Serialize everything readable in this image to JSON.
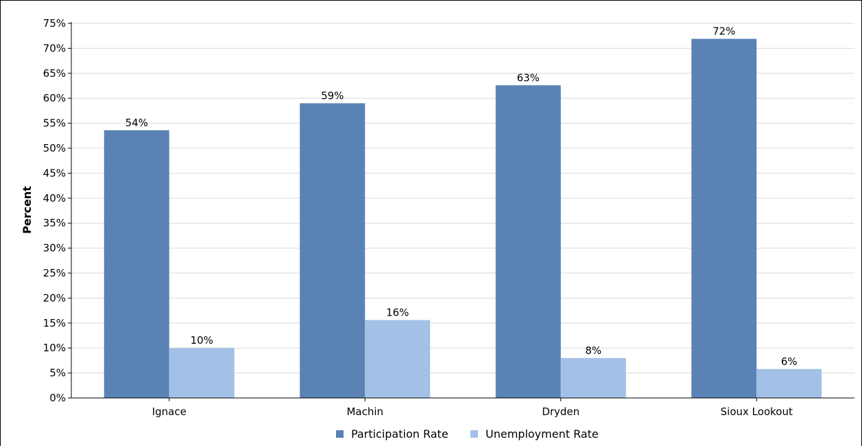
{
  "colors": {
    "participation": "#5a82b4",
    "unemployment": "#a3c1e6",
    "grid": "#d9d9d9",
    "axis": "#000000"
  },
  "chart_data": {
    "type": "bar",
    "title": "",
    "xlabel": "",
    "ylabel": "Percent",
    "ylim": [
      0,
      75
    ],
    "ytick_step": 5,
    "ytick_suffix": "%",
    "grid": true,
    "legend_position": "bottom",
    "categories": [
      "Ignace",
      "Machin",
      "Dryden",
      "Sioux Lookout"
    ],
    "series": [
      {
        "name": "Participation Rate",
        "values": [
          53.6,
          59.0,
          62.6,
          71.9
        ],
        "labels": [
          "54%",
          "59%",
          "63%",
          "72%"
        ],
        "color_key": "participation"
      },
      {
        "name": "Unemployment Rate",
        "values": [
          10.0,
          15.6,
          8.0,
          5.8
        ],
        "labels": [
          "10%",
          "16%",
          "8%",
          "6%"
        ],
        "color_key": "unemployment"
      }
    ]
  }
}
